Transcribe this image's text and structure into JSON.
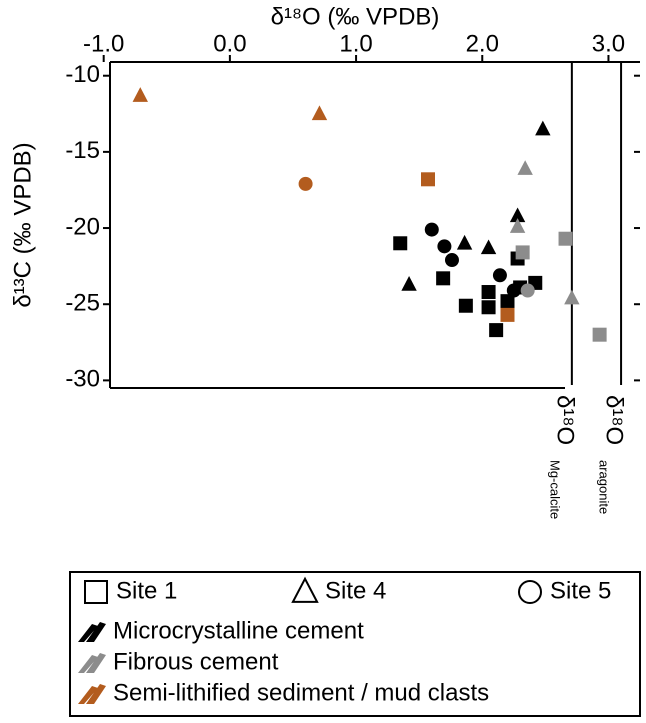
{
  "chart_data": {
    "type": "scatter",
    "x_label": "δ¹⁸O (‰ VPDB)",
    "y_label": "δ¹³C (‰ VPDB)",
    "xlim": [
      -0.95,
      3.25
    ],
    "ylim": [
      -30.5,
      -9.1
    ],
    "xticks": [
      {
        "value": -1,
        "label": "-1.0"
      },
      {
        "value": 0,
        "label": "0.0"
      },
      {
        "value": 1,
        "label": "1.0"
      },
      {
        "value": 2,
        "label": "2.0"
      },
      {
        "value": 3,
        "label": "3.0"
      }
    ],
    "yticks": [
      -10,
      -15,
      -20,
      -25,
      -30
    ],
    "reference_lines": [
      {
        "x": 2.71,
        "label": "δ¹⁸O",
        "sublabel": "Mg-calcite"
      },
      {
        "x": 3.1,
        "label": "δ¹⁸O",
        "sublabel": "aragonite"
      }
    ],
    "shape_legend": [
      {
        "name": "Site 1",
        "marker": "square"
      },
      {
        "name": "Site 4",
        "marker": "triangle"
      },
      {
        "name": "Site 5",
        "marker": "circle"
      }
    ],
    "color_legend": [
      {
        "name": "Microcrystalline cement",
        "color": "#000000"
      },
      {
        "name": "Fibrous cement",
        "color": "#8c8c8c"
      },
      {
        "name": "Semi-lithified sediment / mud clasts",
        "color": "#b35c1e"
      }
    ],
    "series": [
      {
        "shape": 0,
        "material": 0,
        "x": [
          1.35,
          1.69,
          1.87,
          2.05,
          2.05,
          2.11,
          2.2,
          2.28,
          2.3,
          2.42
        ],
        "y": [
          -21.0,
          -23.3,
          -25.1,
          -24.2,
          -25.2,
          -26.7,
          -24.8,
          -22.0,
          -23.9,
          -23.6
        ]
      },
      {
        "shape": 1,
        "material": 0,
        "x": [
          1.42,
          1.86,
          2.05,
          2.28,
          2.48
        ],
        "y": [
          -23.7,
          -21.0,
          -21.3,
          -19.2,
          -13.5
        ]
      },
      {
        "shape": 2,
        "material": 0,
        "x": [
          1.6,
          1.7,
          1.76,
          2.14,
          2.25
        ],
        "y": [
          -20.1,
          -21.2,
          -22.1,
          -23.1,
          -24.1
        ]
      },
      {
        "shape": 0,
        "material": 1,
        "x": [
          2.32,
          2.66,
          2.93
        ],
        "y": [
          -21.6,
          -20.7,
          -27.0
        ]
      },
      {
        "shape": 1,
        "material": 1,
        "x": [
          2.34,
          2.28,
          2.71
        ],
        "y": [
          -16.1,
          -19.9,
          -24.6
        ]
      },
      {
        "shape": 2,
        "material": 1,
        "x": [
          2.36
        ],
        "y": [
          -24.1
        ]
      },
      {
        "shape": 0,
        "material": 2,
        "x": [
          1.57,
          2.2
        ],
        "y": [
          -16.8,
          -25.7
        ]
      },
      {
        "shape": 1,
        "material": 2,
        "x": [
          -0.71,
          0.71
        ],
        "y": [
          -11.3,
          -12.5
        ]
      },
      {
        "shape": 2,
        "material": 2,
        "x": [
          0.6
        ],
        "y": [
          -17.1
        ]
      }
    ]
  }
}
